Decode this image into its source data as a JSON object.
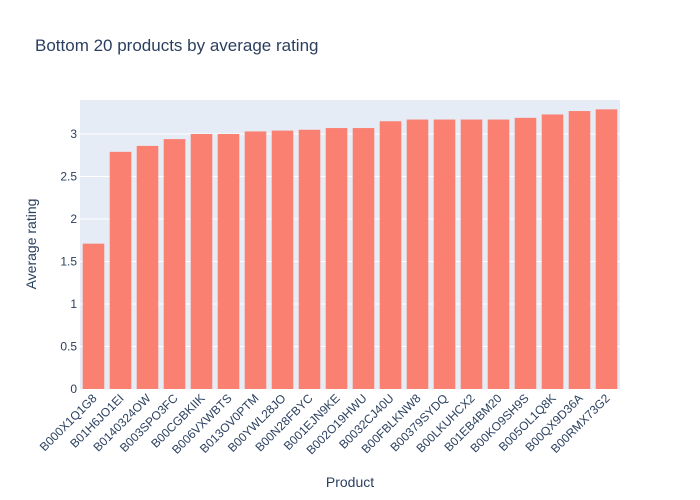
{
  "chart_data": {
    "type": "bar",
    "title": "Bottom 20 products by average rating",
    "xlabel": "Product",
    "ylabel": "Average rating",
    "ylim": [
      0,
      3.4
    ],
    "yticks": [
      0,
      0.5,
      1,
      1.5,
      2,
      2.5,
      3
    ],
    "ytick_labels": [
      "0",
      "0.5",
      "1",
      "1.5",
      "2",
      "2.5",
      "3"
    ],
    "grid": true,
    "legend": "none",
    "bar_color": "#fa8072",
    "plot_bg": "#e5ecf6",
    "categories": [
      "B000X1Q1G8",
      "B01H6JO1EI",
      "B0140324OW",
      "B003SPO3FC",
      "B00CGBKIIK",
      "B006VXWBTS",
      "B013OV0PTM",
      "B00YWL28JO",
      "B00N28FBYC",
      "B001EJN9KE",
      "B002O19HWU",
      "B0032CJ40U",
      "B00FBLKNW8",
      "B00379SYDQ",
      "B00LKUHCX2",
      "B01EB4BM20",
      "B00KO9SH9S",
      "B005OL1Q8K",
      "B00QX9D36A",
      "B00RMX73G2"
    ],
    "values": [
      1.71,
      2.79,
      2.86,
      2.94,
      3.0,
      3.0,
      3.03,
      3.04,
      3.05,
      3.07,
      3.07,
      3.15,
      3.17,
      3.17,
      3.17,
      3.17,
      3.19,
      3.23,
      3.27,
      3.29
    ]
  }
}
